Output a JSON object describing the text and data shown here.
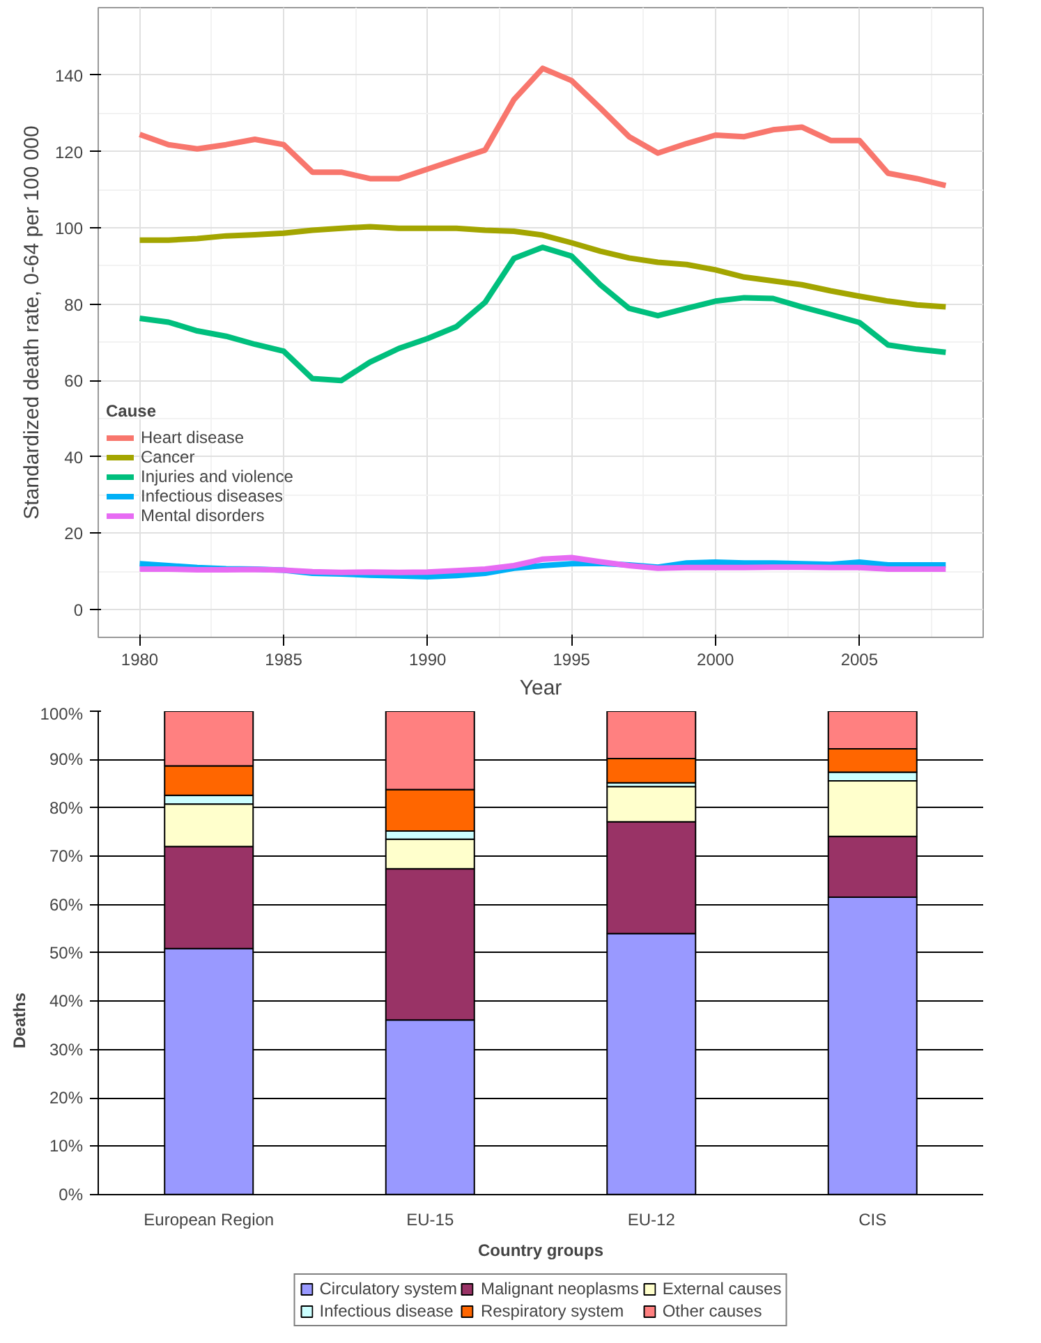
{
  "chart_data": [
    {
      "type": "line",
      "xlabel": "Year",
      "ylabel": "Standardized death rate, 0-64 per 100 000",
      "legend_title": "Cause",
      "legend": "left",
      "grid": true,
      "xlim": [
        1978.56,
        2009.3
      ],
      "xticks": [
        1980,
        1985,
        1990,
        1995,
        2000,
        2005
      ],
      "ylim": [
        -7.3,
        157.7
      ],
      "yticks": [
        0,
        20,
        40,
        60,
        80,
        100,
        120,
        140
      ],
      "x": [
        1980,
        1981,
        1982,
        1983,
        1984,
        1985,
        1986,
        1987,
        1988,
        1989,
        1990,
        1991,
        1992,
        1993,
        1994,
        1995,
        1996,
        1997,
        1998,
        1999,
        2000,
        2001,
        2002,
        2003,
        2004,
        2005,
        2006,
        2007,
        2008
      ],
      "series": [
        {
          "name": "Heart disease",
          "color": "#f8766d",
          "values": [
            124.5,
            121.8,
            120.7,
            121.8,
            123.2,
            121.8,
            114.6,
            114.6,
            112.9,
            112.9,
            115.4,
            117.9,
            120.4,
            133.6,
            141.8,
            138.6,
            131.4,
            123.9,
            119.6,
            122.1,
            124.3,
            123.9,
            125.7,
            126.4,
            122.9,
            122.9,
            114.3,
            112.9,
            111.1
          ]
        },
        {
          "name": "Cancer",
          "color": "#a3a500",
          "values": [
            96.8,
            96.8,
            97.2,
            97.9,
            98.2,
            98.6,
            99.4,
            99.9,
            100.3,
            99.9,
            99.9,
            99.9,
            99.4,
            99.1,
            98.1,
            96.1,
            93.9,
            92.1,
            91.0,
            90.4,
            89.0,
            87.1,
            86.1,
            85.1,
            83.5,
            82.1,
            80.8,
            79.8,
            79.3
          ]
        },
        {
          "name": "Injuries and violence",
          "color": "#00bf7d",
          "values": [
            76.3,
            75.3,
            73.0,
            71.6,
            69.5,
            67.7,
            60.5,
            60.0,
            64.8,
            68.4,
            71.0,
            74.1,
            80.5,
            92.0,
            94.9,
            92.6,
            85.1,
            78.9,
            77.0,
            78.9,
            80.8,
            81.7,
            81.5,
            79.3,
            77.3,
            75.2,
            69.3,
            68.2,
            67.4
          ]
        },
        {
          "name": "Infectious diseases",
          "color": "#00b0f6",
          "values": [
            12.0,
            11.5,
            11.0,
            10.7,
            10.6,
            10.3,
            9.5,
            9.3,
            9.0,
            8.8,
            8.6,
            8.9,
            9.5,
            10.8,
            11.5,
            12.0,
            12.1,
            11.7,
            11.1,
            12.2,
            12.4,
            12.2,
            12.2,
            12.0,
            11.8,
            12.4,
            11.7,
            11.7,
            11.7
          ]
        },
        {
          "name": "Mental disorders",
          "color": "#e76bf3",
          "values": [
            10.6,
            10.6,
            10.4,
            10.4,
            10.5,
            10.3,
            9.9,
            9.7,
            9.8,
            9.7,
            9.8,
            10.2,
            10.6,
            11.5,
            13.2,
            13.6,
            12.5,
            11.5,
            10.8,
            11.0,
            11.0,
            11.0,
            11.1,
            11.1,
            11.0,
            11.0,
            10.6,
            10.6,
            10.6
          ]
        }
      ]
    },
    {
      "type": "bar",
      "stacked": true,
      "xlabel": "Country groups",
      "ylabel": "Deaths",
      "legend": "bottom",
      "grid": "y",
      "categories": [
        "European Region",
        "EU-15",
        "EU-12",
        "CIS"
      ],
      "ylim": [
        0,
        100
      ],
      "yticks": [
        {
          "value": 0,
          "label": "0%"
        },
        {
          "value": 10,
          "label": "10%"
        },
        {
          "value": 20,
          "label": "20%"
        },
        {
          "value": 30,
          "label": "30%"
        },
        {
          "value": 40,
          "label": "40%"
        },
        {
          "value": 50,
          "label": "50%"
        },
        {
          "value": 60,
          "label": "60%"
        },
        {
          "value": 70,
          "label": "70%"
        },
        {
          "value": 80,
          "label": "80%"
        },
        {
          "value": 90,
          "label": "90%"
        },
        {
          "value": 100,
          "label": "100%"
        }
      ],
      "series": [
        {
          "name": "Circulatory system",
          "color": "#9999ff",
          "values": [
            50.9,
            36.1,
            54.0,
            61.5
          ]
        },
        {
          "name": "Malignant neoplasms",
          "color": "#993366",
          "values": [
            21.1,
            31.3,
            23.1,
            12.6
          ]
        },
        {
          "name": "External causes",
          "color": "#ffffcc",
          "values": [
            8.8,
            6.1,
            7.3,
            11.5
          ]
        },
        {
          "name": "Infectious disease",
          "color": "#ccffff",
          "values": [
            1.8,
            1.7,
            0.8,
            1.8
          ]
        },
        {
          "name": "Respiratory system",
          "color": "#ff6600",
          "values": [
            6.1,
            8.6,
            5.0,
            4.8
          ]
        },
        {
          "name": "Other causes",
          "color": "#ff8080",
          "values": [
            11.3,
            16.2,
            9.8,
            7.8
          ]
        }
      ]
    }
  ]
}
